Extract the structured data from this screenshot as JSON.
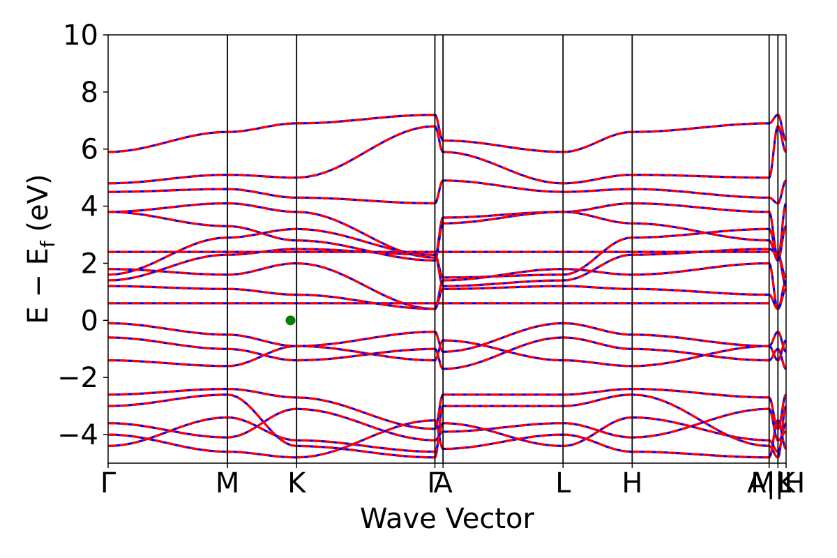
{
  "chart_data": {
    "type": "line",
    "title": "",
    "xlabel": "Wave Vector",
    "ylabel_main": "E − E",
    "ylabel_sub": "f",
    "ylabel_tail": " (eV)",
    "ylim": [
      -5,
      10
    ],
    "yticks": [
      -4,
      -2,
      0,
      2,
      4,
      6,
      8,
      10
    ],
    "ytick_labels": [
      "−4",
      "−2",
      "0",
      "2",
      "4",
      "6",
      "8",
      "10"
    ],
    "xlim": [
      0,
      1
    ],
    "kpath": [
      {
        "label": "Γ",
        "x": 0.0
      },
      {
        "label": "M",
        "x": 0.176
      },
      {
        "label": "K",
        "x": 0.278
      },
      {
        "label": "Γ",
        "x": 0.482
      },
      {
        "label": "A",
        "x": 0.494
      },
      {
        "label": "L",
        "x": 0.671
      },
      {
        "label": "H",
        "x": 0.773
      },
      {
        "label": "A|L",
        "x": 0.975
      },
      {
        "label": "M|H",
        "x": 0.988
      },
      {
        "label": "K",
        "x": 1.0
      }
    ],
    "fermi_marker": {
      "x": 0.269,
      "y": 0.0,
      "color": "#008000"
    },
    "series": [
      {
        "style": "solid",
        "color": "#0000ff"
      },
      {
        "style": "dashed",
        "color": "#ff0000"
      }
    ],
    "bands": [
      {
        "label": "flat band",
        "flat": true,
        "y": [
          0.6
        ]
      },
      {
        "label": "flat band",
        "flat": true,
        "y": [
          2.4
        ]
      },
      {
        "y": [
          3.8,
          4.1,
          3.8,
          2.2,
          3.6,
          3.8,
          4.1,
          3.8,
          2.2,
          4.1,
          3.8
        ]
      },
      {
        "y": [
          3.8,
          3.3,
          2.8,
          2.1,
          3.4,
          3.8,
          3.4,
          2.8,
          2.1,
          3.3,
          3.8
        ]
      },
      {
        "y": [
          1.6,
          2.9,
          3.2,
          2.3,
          1.5,
          1.6,
          2.9,
          3.2,
          2.3,
          1.5,
          1.6
        ]
      },
      {
        "y": [
          1.4,
          2.3,
          2.5,
          2.3,
          1.2,
          1.4,
          2.3,
          2.5,
          2.3,
          1.2,
          1.4
        ]
      },
      {
        "y": [
          1.8,
          1.6,
          2.0,
          0.4,
          1.4,
          1.8,
          1.6,
          2.0,
          0.4,
          1.4,
          1.8
        ]
      },
      {
        "y": [
          1.2,
          1.1,
          0.9,
          0.4,
          1.1,
          1.2,
          1.1,
          0.9,
          0.4,
          1.1,
          1.2
        ]
      },
      {
        "y": [
          4.8,
          5.1,
          5.0,
          6.8,
          5.9,
          4.8,
          5.1,
          5.0,
          6.8,
          5.9,
          4.8
        ]
      },
      {
        "y": [
          5.9,
          6.6,
          6.9,
          7.2,
          6.3,
          5.9,
          6.6,
          6.9,
          7.2,
          6.3,
          5.9
        ]
      },
      {
        "y": [
          4.5,
          4.6,
          4.3,
          4.1,
          4.9,
          4.5,
          4.6,
          4.3,
          4.1,
          4.9,
          4.5
        ]
      },
      {
        "y": [
          -0.1,
          -0.5,
          -0.9,
          -0.4,
          -1.1,
          -0.1,
          -0.5,
          -0.9,
          -0.4,
          -1.1,
          -0.1
        ]
      },
      {
        "y": [
          -0.6,
          -1.0,
          -1.4,
          -1.0,
          -1.7,
          -0.6,
          -1.0,
          -1.4,
          -1.0,
          -1.7,
          -0.6
        ]
      },
      {
        "y": [
          -1.4,
          -1.6,
          -0.9,
          -1.4,
          -0.7,
          -1.4,
          -1.6,
          -0.9,
          -1.4,
          -0.7,
          -1.4
        ]
      },
      {
        "y": [
          -2.6,
          -2.4,
          -2.7,
          -3.8,
          -2.6,
          -2.6,
          -2.4,
          -2.7,
          -3.8,
          -2.6,
          -2.6
        ]
      },
      {
        "y": [
          -3.0,
          -2.6,
          -4.4,
          -4.8,
          -3.0,
          -3.0,
          -2.6,
          -4.4,
          -4.8,
          -3.0,
          -3.0
        ]
      },
      {
        "y": [
          -3.6,
          -4.1,
          -3.1,
          -4.2,
          -3.9,
          -3.6,
          -4.1,
          -3.1,
          -4.2,
          -3.9,
          -3.6
        ]
      },
      {
        "y": [
          -4.0,
          -4.6,
          -4.8,
          -3.5,
          -4.5,
          -4.0,
          -4.6,
          -4.8,
          -3.5,
          -4.5,
          -4.0
        ]
      },
      {
        "y": [
          -4.4,
          -3.4,
          -4.2,
          -4.6,
          -3.6,
          -4.4,
          -3.4,
          -4.2,
          -4.6,
          -3.6,
          -4.4
        ]
      }
    ]
  }
}
